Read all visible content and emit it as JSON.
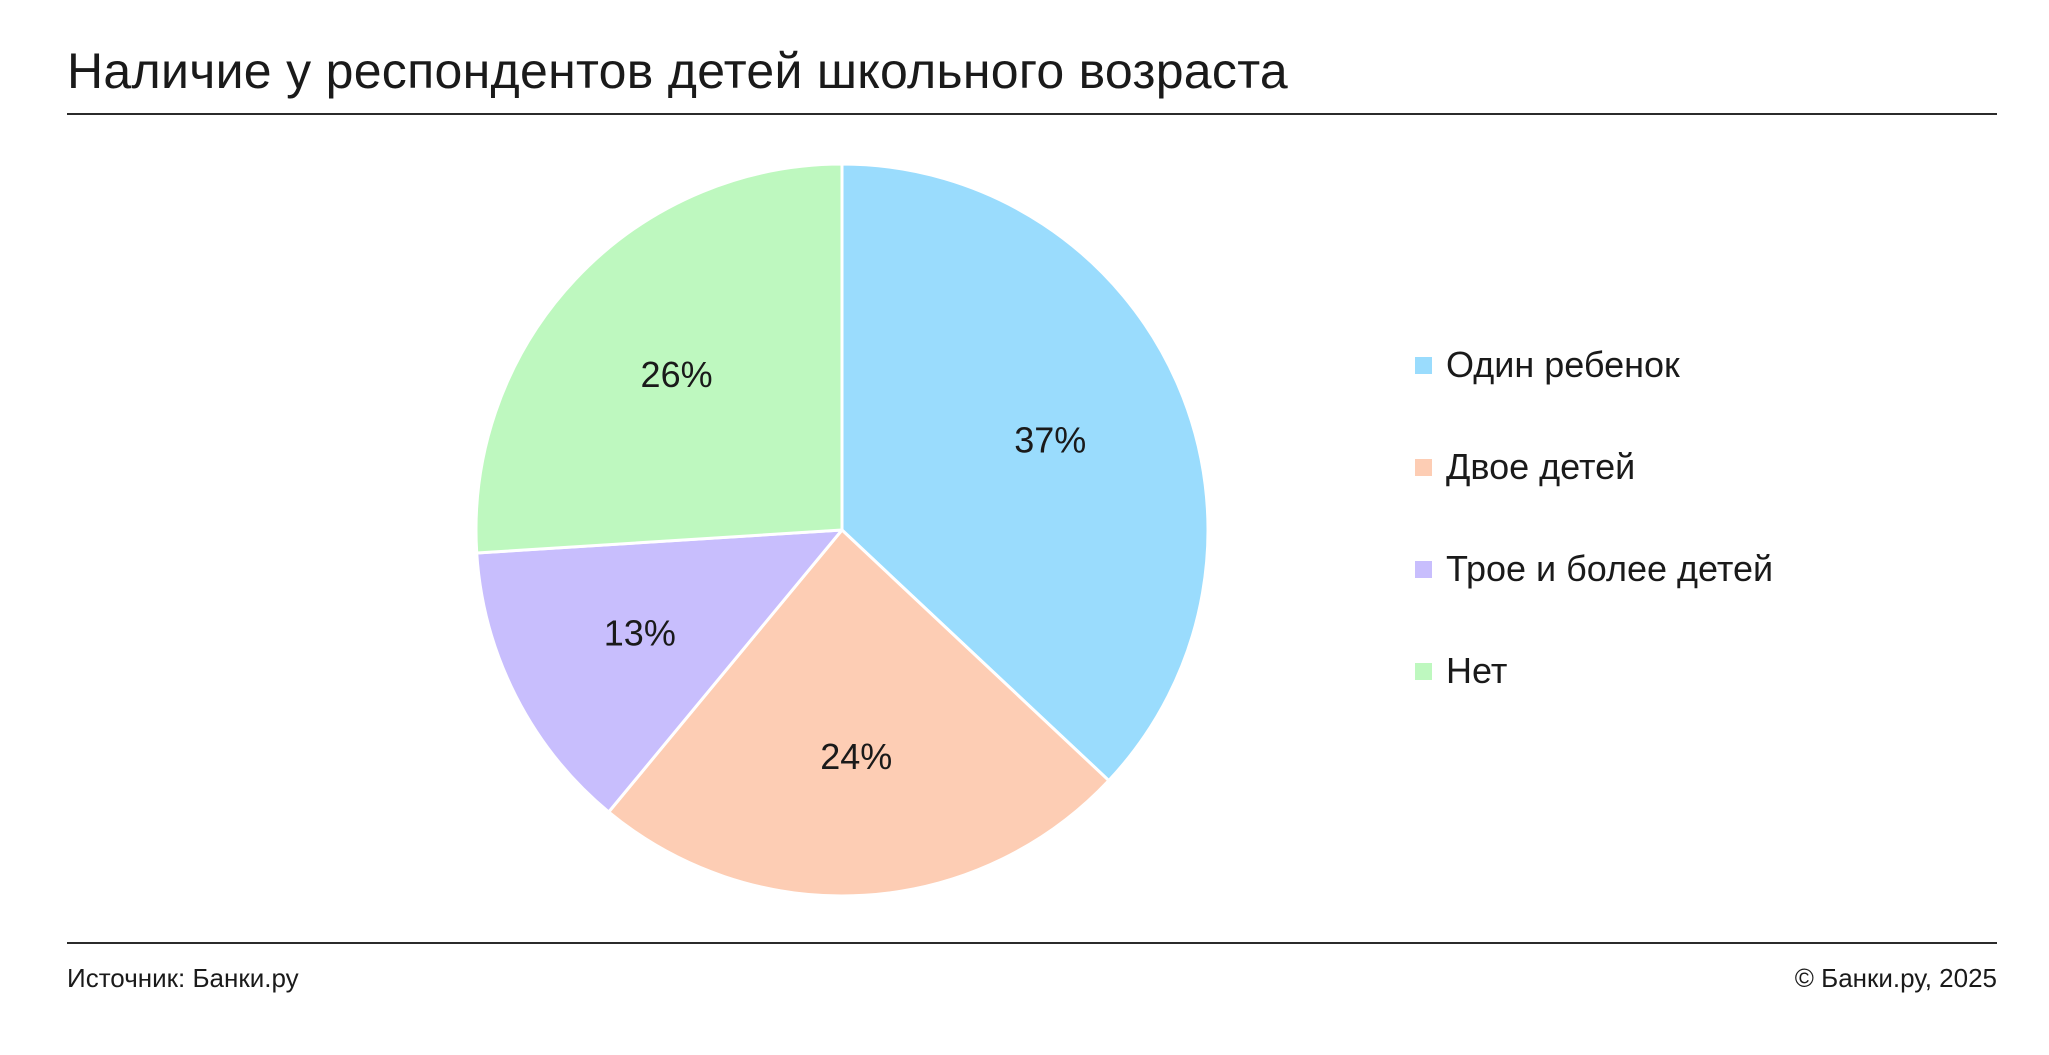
{
  "title": "Наличие у респондентов детей школьного возраста",
  "chart_data": {
    "type": "pie",
    "title": "Наличие у респондентов детей школьного возраста",
    "legend_position": "right",
    "series": [
      {
        "name": "Один ребенок",
        "value": 37,
        "label": "37%",
        "color": "#9adcfd"
      },
      {
        "name": "Двое детей",
        "value": 24,
        "label": "24%",
        "color": "#fdcdb4"
      },
      {
        "name": "Трое и более детей",
        "value": 13,
        "label": "13%",
        "color": "#c8befd"
      },
      {
        "name": "Нет",
        "value": 26,
        "label": "26%",
        "color": "#bef8bf"
      }
    ]
  },
  "footer": {
    "source": "Источник: Банки.ру",
    "copyright": "© Банки.ру, 2025"
  }
}
